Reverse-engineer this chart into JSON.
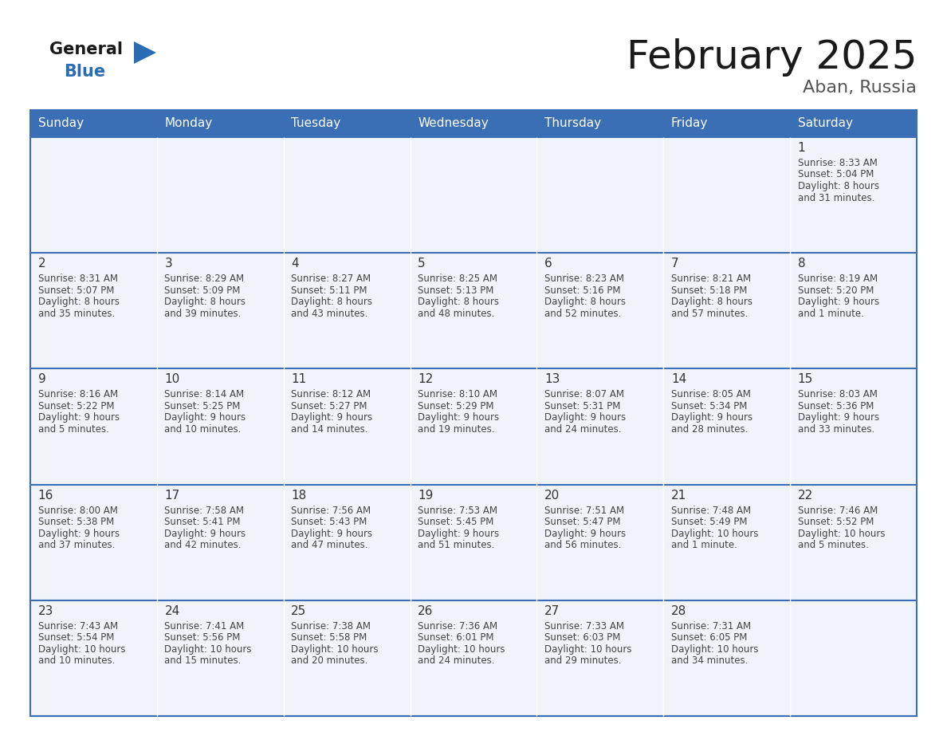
{
  "title": "February 2025",
  "subtitle": "Aban, Russia",
  "days_of_week": [
    "Sunday",
    "Monday",
    "Tuesday",
    "Wednesday",
    "Thursday",
    "Friday",
    "Saturday"
  ],
  "header_bg": "#3a6eb5",
  "header_text": "#ffffff",
  "cell_bg": "#f0f4fa",
  "border_color": "#3a6eb5",
  "day_number_color": "#333333",
  "info_text_color": "#444444",
  "title_color": "#1a1a1a",
  "subtitle_color": "#555555",
  "logo_general_color": "#1a1a1a",
  "logo_blue_color": "#2a6db5",
  "calendar_data": [
    {
      "day": 1,
      "col": 6,
      "row": 0,
      "sunrise": "8:33 AM",
      "sunset": "5:04 PM",
      "daylight": "8 hours and 31 minutes."
    },
    {
      "day": 2,
      "col": 0,
      "row": 1,
      "sunrise": "8:31 AM",
      "sunset": "5:07 PM",
      "daylight": "8 hours and 35 minutes."
    },
    {
      "day": 3,
      "col": 1,
      "row": 1,
      "sunrise": "8:29 AM",
      "sunset": "5:09 PM",
      "daylight": "8 hours and 39 minutes."
    },
    {
      "day": 4,
      "col": 2,
      "row": 1,
      "sunrise": "8:27 AM",
      "sunset": "5:11 PM",
      "daylight": "8 hours and 43 minutes."
    },
    {
      "day": 5,
      "col": 3,
      "row": 1,
      "sunrise": "8:25 AM",
      "sunset": "5:13 PM",
      "daylight": "8 hours and 48 minutes."
    },
    {
      "day": 6,
      "col": 4,
      "row": 1,
      "sunrise": "8:23 AM",
      "sunset": "5:16 PM",
      "daylight": "8 hours and 52 minutes."
    },
    {
      "day": 7,
      "col": 5,
      "row": 1,
      "sunrise": "8:21 AM",
      "sunset": "5:18 PM",
      "daylight": "8 hours and 57 minutes."
    },
    {
      "day": 8,
      "col": 6,
      "row": 1,
      "sunrise": "8:19 AM",
      "sunset": "5:20 PM",
      "daylight": "9 hours and 1 minute."
    },
    {
      "day": 9,
      "col": 0,
      "row": 2,
      "sunrise": "8:16 AM",
      "sunset": "5:22 PM",
      "daylight": "9 hours and 5 minutes."
    },
    {
      "day": 10,
      "col": 1,
      "row": 2,
      "sunrise": "8:14 AM",
      "sunset": "5:25 PM",
      "daylight": "9 hours and 10 minutes."
    },
    {
      "day": 11,
      "col": 2,
      "row": 2,
      "sunrise": "8:12 AM",
      "sunset": "5:27 PM",
      "daylight": "9 hours and 14 minutes."
    },
    {
      "day": 12,
      "col": 3,
      "row": 2,
      "sunrise": "8:10 AM",
      "sunset": "5:29 PM",
      "daylight": "9 hours and 19 minutes."
    },
    {
      "day": 13,
      "col": 4,
      "row": 2,
      "sunrise": "8:07 AM",
      "sunset": "5:31 PM",
      "daylight": "9 hours and 24 minutes."
    },
    {
      "day": 14,
      "col": 5,
      "row": 2,
      "sunrise": "8:05 AM",
      "sunset": "5:34 PM",
      "daylight": "9 hours and 28 minutes."
    },
    {
      "day": 15,
      "col": 6,
      "row": 2,
      "sunrise": "8:03 AM",
      "sunset": "5:36 PM",
      "daylight": "9 hours and 33 minutes."
    },
    {
      "day": 16,
      "col": 0,
      "row": 3,
      "sunrise": "8:00 AM",
      "sunset": "5:38 PM",
      "daylight": "9 hours and 37 minutes."
    },
    {
      "day": 17,
      "col": 1,
      "row": 3,
      "sunrise": "7:58 AM",
      "sunset": "5:41 PM",
      "daylight": "9 hours and 42 minutes."
    },
    {
      "day": 18,
      "col": 2,
      "row": 3,
      "sunrise": "7:56 AM",
      "sunset": "5:43 PM",
      "daylight": "9 hours and 47 minutes."
    },
    {
      "day": 19,
      "col": 3,
      "row": 3,
      "sunrise": "7:53 AM",
      "sunset": "5:45 PM",
      "daylight": "9 hours and 51 minutes."
    },
    {
      "day": 20,
      "col": 4,
      "row": 3,
      "sunrise": "7:51 AM",
      "sunset": "5:47 PM",
      "daylight": "9 hours and 56 minutes."
    },
    {
      "day": 21,
      "col": 5,
      "row": 3,
      "sunrise": "7:48 AM",
      "sunset": "5:49 PM",
      "daylight": "10 hours and 1 minute."
    },
    {
      "day": 22,
      "col": 6,
      "row": 3,
      "sunrise": "7:46 AM",
      "sunset": "5:52 PM",
      "daylight": "10 hours and 5 minutes."
    },
    {
      "day": 23,
      "col": 0,
      "row": 4,
      "sunrise": "7:43 AM",
      "sunset": "5:54 PM",
      "daylight": "10 hours and 10 minutes."
    },
    {
      "day": 24,
      "col": 1,
      "row": 4,
      "sunrise": "7:41 AM",
      "sunset": "5:56 PM",
      "daylight": "10 hours and 15 minutes."
    },
    {
      "day": 25,
      "col": 2,
      "row": 4,
      "sunrise": "7:38 AM",
      "sunset": "5:58 PM",
      "daylight": "10 hours and 20 minutes."
    },
    {
      "day": 26,
      "col": 3,
      "row": 4,
      "sunrise": "7:36 AM",
      "sunset": "6:01 PM",
      "daylight": "10 hours and 24 minutes."
    },
    {
      "day": 27,
      "col": 4,
      "row": 4,
      "sunrise": "7:33 AM",
      "sunset": "6:03 PM",
      "daylight": "10 hours and 29 minutes."
    },
    {
      "day": 28,
      "col": 5,
      "row": 4,
      "sunrise": "7:31 AM",
      "sunset": "6:05 PM",
      "daylight": "10 hours and 34 minutes."
    }
  ]
}
